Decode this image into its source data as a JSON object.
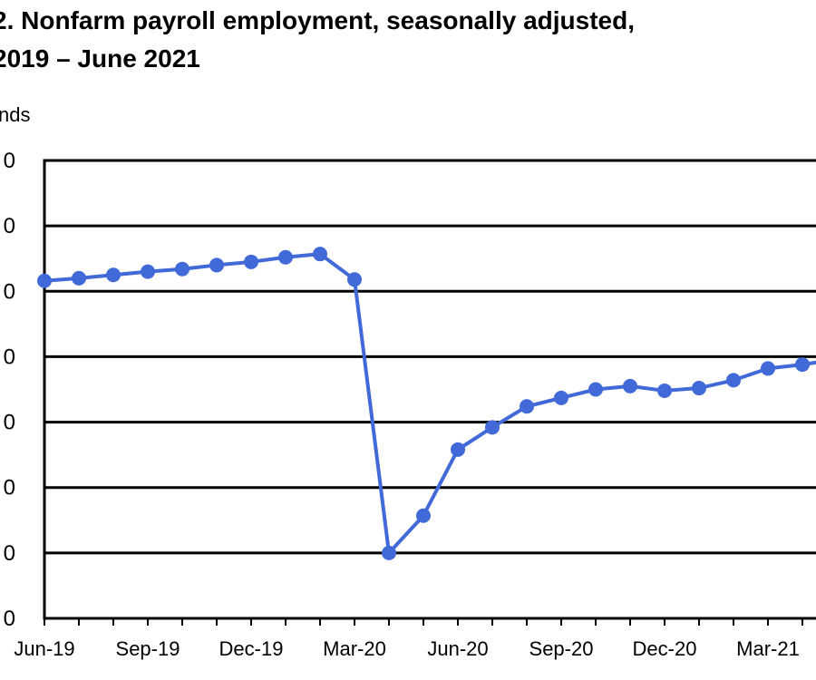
{
  "figure": {
    "title_line1": "2. Nonfarm payroll employment, seasonally adjusted,",
    "title_line2": "2019 – June 2021",
    "units_label": "nds"
  },
  "chart_data": {
    "type": "line",
    "title": "Nonfarm payroll employment, seasonally adjusted, 2019 – June 2021",
    "ylabel": "",
    "ytick_labels": [
      "0",
      "0",
      "0",
      "0",
      "0",
      "0",
      "0",
      "0"
    ],
    "ytick_positions": [
      0,
      1,
      2,
      3,
      4,
      5,
      6,
      7
    ],
    "ylim": [
      0,
      7
    ],
    "grid": true,
    "x": [
      "Jun-19",
      "Jul-19",
      "Aug-19",
      "Sep-19",
      "Oct-19",
      "Nov-19",
      "Dec-19",
      "Jan-20",
      "Feb-20",
      "Mar-20",
      "Apr-20",
      "May-20",
      "Jun-20",
      "Jul-20",
      "Aug-20",
      "Sep-20",
      "Oct-20",
      "Nov-20",
      "Dec-20",
      "Jan-21",
      "Feb-21",
      "Mar-21",
      "Apr-21",
      "May-21"
    ],
    "xtick_labels": [
      "Jun-19",
      "Sep-19",
      "Dec-19",
      "Mar-20",
      "Jun-20",
      "Sep-20",
      "Dec-20",
      "Mar-21"
    ],
    "series": [
      {
        "color": "#4169d8",
        "values": [
          5.16,
          5.2,
          5.25,
          5.3,
          5.34,
          5.4,
          5.45,
          5.52,
          5.57,
          5.18,
          1.0,
          1.57,
          2.58,
          2.92,
          3.24,
          3.37,
          3.5,
          3.55,
          3.48,
          3.52,
          3.64,
          3.82,
          3.88,
          3.96
        ]
      }
    ]
  }
}
